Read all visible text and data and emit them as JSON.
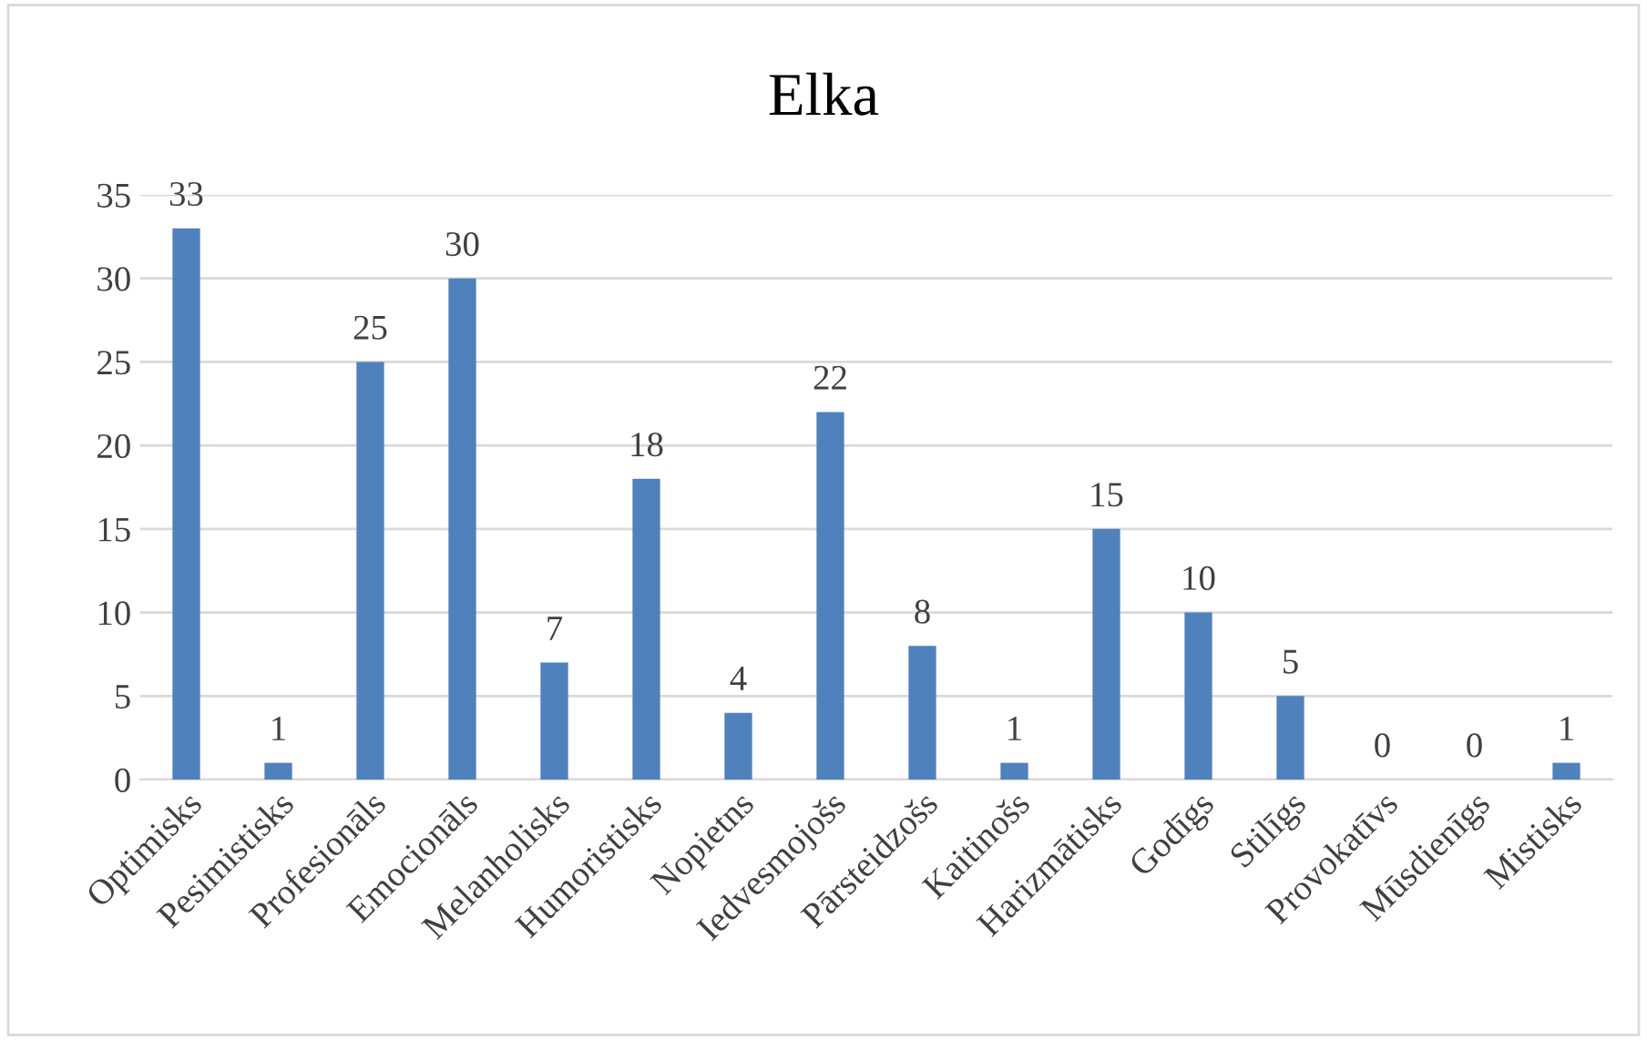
{
  "chart_data": {
    "type": "bar",
    "title": "Elka",
    "categories": [
      "Optimisks",
      "Pesimistisks",
      "Profesionāls",
      "Emocionāls",
      "Melanholisks",
      "Humoristisks",
      "Nopietns",
      "Iedvesmojošs",
      "Pārsteidzošs",
      "Kaitinošs",
      "Harizmātisks",
      "Godīgs",
      "Stilīgs",
      "Provokatīvs",
      "Mūsdienīgs",
      "Mistisks"
    ],
    "values": [
      33,
      1,
      25,
      30,
      7,
      18,
      4,
      22,
      8,
      1,
      15,
      10,
      5,
      0,
      0,
      1
    ],
    "color": "#4f81bd",
    "ylim": [
      0,
      35
    ],
    "yticks": [
      0,
      5,
      10,
      15,
      20,
      25,
      30,
      35
    ],
    "grid": "y",
    "data_labels": true,
    "legend": false
  }
}
